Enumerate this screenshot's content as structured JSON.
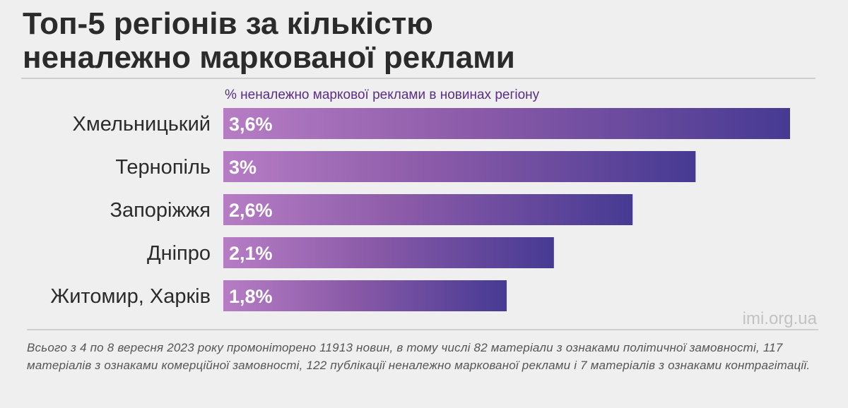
{
  "title": {
    "line1": "Топ-5 регіонів за кількістю",
    "line2": "неналежно маркованої реклами"
  },
  "subtitle": "% неналежно маркової реклами в новинах регіону",
  "source": "imi.org.ua",
  "note": "Всього з 4 по 8 вересня 2023 року промоніторено 11913 новин, в тому числі 82 матеріали з ознаками політичної замовності, 117 матеріалів з ознаками комерційної замовності, 122 публікації неналежно маркованої реклами і 7 матеріалів з ознаками контрагітації.",
  "colors": {
    "bar_start": "#b67dc4",
    "bar_mid": "#8a5aa8",
    "bar_end": "#463a93",
    "title": "#2b2b2b",
    "subtitle": "#5a2d86"
  },
  "chart_data": {
    "type": "bar",
    "orientation": "horizontal",
    "categories": [
      "Хмельницький",
      "Тернопіль",
      "Запоріжжя",
      "Дніпро",
      "Житомир, Харків"
    ],
    "values": [
      3.6,
      3.0,
      2.6,
      2.1,
      1.8
    ],
    "value_labels": [
      "3,6%",
      "3%",
      "2,6%",
      "2,1%",
      "1,8%"
    ],
    "xlim": [
      0,
      3.6
    ],
    "grid": false,
    "legend": "none"
  }
}
